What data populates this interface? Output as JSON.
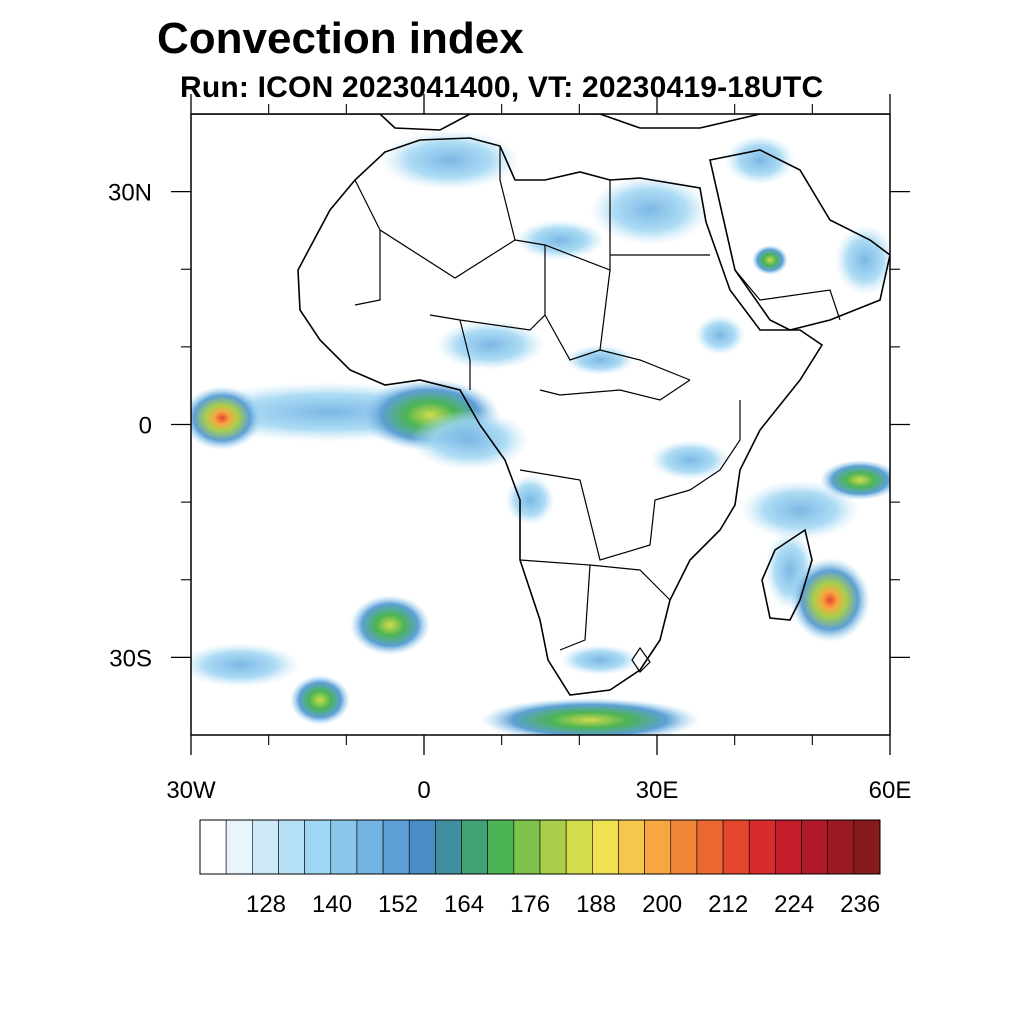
{
  "header": {
    "title": "Convection index",
    "subtitle": "Run: ICON 2023041400,  VT: 20230419-18UTC"
  },
  "map": {
    "projection": "cylindrical-equidistant",
    "lon_range": [
      -30,
      60
    ],
    "lat_range": [
      -40,
      40
    ],
    "lon_major_ticks": [
      {
        "value": -30,
        "label": "30W"
      },
      {
        "value": 0,
        "label": "0"
      },
      {
        "value": 30,
        "label": "30E"
      },
      {
        "value": 60,
        "label": "60E"
      }
    ],
    "lat_major_ticks": [
      {
        "value": 30,
        "label": "30N"
      },
      {
        "value": 0,
        "label": "0"
      },
      {
        "value": -30,
        "label": "30S"
      }
    ],
    "lon_minor_ticks": [
      -20,
      -10,
      10,
      20,
      40,
      50
    ],
    "lat_minor_ticks": [
      20,
      10,
      -10,
      -20
    ]
  },
  "colorbar": {
    "colors": [
      "#ffffff",
      "#e8f5fc",
      "#cde9f8",
      "#b6e0f6",
      "#9fd6f3",
      "#8ac7ec",
      "#74b4e3",
      "#5d9fd6",
      "#4a8dc6",
      "#3f8fa0",
      "#42a276",
      "#4bb454",
      "#7ec24c",
      "#a9cf4a",
      "#d2dc4c",
      "#f0e151",
      "#f7c64c",
      "#f7a742",
      "#f2873a",
      "#ec6832",
      "#e3462d",
      "#d82c2c",
      "#c51d2c",
      "#b0182b",
      "#9a1a23",
      "#861a1c"
    ],
    "labels": [
      {
        "text": "128",
        "boundary": 3
      },
      {
        "text": "140",
        "boundary": 6
      },
      {
        "text": "152",
        "boundary": 9
      },
      {
        "text": "164",
        "boundary": 12
      },
      {
        "text": "176",
        "boundary": 15
      },
      {
        "text": "188",
        "boundary": 18
      },
      {
        "text": "200",
        "boundary": 21
      },
      {
        "text": "212",
        "boundary": 24
      },
      {
        "text": "224",
        "boundary": 27
      },
      {
        "text": "236",
        "boundary": 30
      }
    ]
  }
}
